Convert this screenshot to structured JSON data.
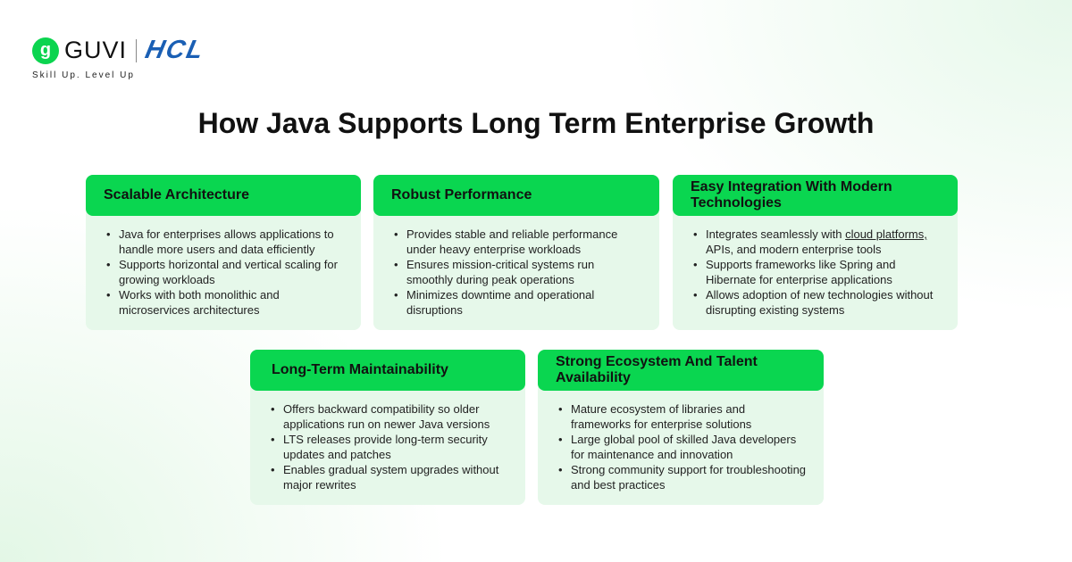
{
  "brand": {
    "guvi": "GUVI",
    "guvi_mark": "g",
    "hcl": "HCL",
    "tagline": "Skill Up. Level Up"
  },
  "title": "How Java Supports Long Term Enterprise Growth",
  "cards": [
    {
      "title": "Scalable Architecture",
      "items": [
        "Java for enterprises allows applications to handle more users and data efficiently",
        "Supports horizontal and vertical scaling for growing workloads",
        "Works with both monolithic and microservices architectures"
      ]
    },
    {
      "title": "Robust Performance",
      "items": [
        "Provides stable and reliable performance under heavy enterprise workloads",
        "Ensures mission-critical systems run smoothly during peak operations",
        "Minimizes downtime and operational disruptions"
      ]
    },
    {
      "title": "Easy Integration With Modern Technologies",
      "items": [
        "Integrates seamlessly with ",
        "APIs, and modern enterprise tools",
        "Supports frameworks like Spring and Hibernate for enterprise applications",
        "Allows adoption of new technologies without disrupting existing systems"
      ],
      "link": "cloud platforms,",
      "link_after": " "
    },
    {
      "title": "Long-Term Maintainability",
      "items": [
        "Offers backward compatibility so older applications run on newer Java versions",
        "LTS releases provide long-term security updates and patches",
        "Enables gradual system upgrades without major rewrites"
      ]
    },
    {
      "title": "Strong Ecosystem And Talent Availability",
      "items": [
        "Mature ecosystem of libraries and frameworks for enterprise solutions",
        "Large global pool of skilled Java developers for maintenance and innovation",
        "Strong community support for troubleshooting and best practices"
      ]
    }
  ],
  "colors": {
    "accent": "#0ad650",
    "card_bg": "#e6f8ea",
    "hcl_blue": "#1a5fb4"
  }
}
